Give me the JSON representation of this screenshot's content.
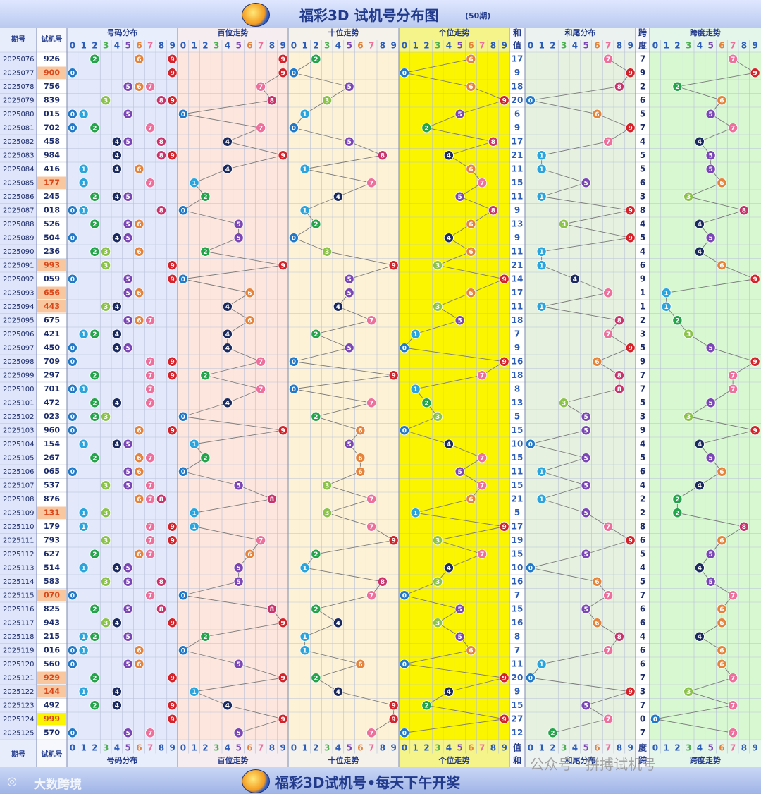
{
  "title": "福彩3D  试机号分布图",
  "subtitle": "(50期)",
  "footer_title": "福彩3D试机号•每天下午开奖",
  "footer_brand": "大数跨境",
  "watermark": "公众号 · 拼搏试机号",
  "headers": {
    "period": "期号",
    "trial": "试机号",
    "dist": "号码分布",
    "bai": "百位走势",
    "shi": "十位走势",
    "ge": "个位走势",
    "he1": "和",
    "he2": "值",
    "hw": "和尾分布",
    "kd1": "跨",
    "kd2": "度",
    "kdt": "跨度走势"
  },
  "chart_data": {
    "type": "table",
    "periods": [
      "2025076",
      "2025077",
      "2025078",
      "2025079",
      "2025080",
      "2025081",
      "2025082",
      "2025083",
      "2025084",
      "2025085",
      "2025086",
      "2025087",
      "2025088",
      "2025089",
      "2025090",
      "2025091",
      "2025092",
      "2025093",
      "2025094",
      "2025095",
      "2025096",
      "2025097",
      "2025098",
      "2025099",
      "2025100",
      "2025101",
      "2025102",
      "2025103",
      "2025104",
      "2025105",
      "2025106",
      "2025107",
      "2025108",
      "2025109",
      "2025110",
      "2025111",
      "2025112",
      "2025113",
      "2025114",
      "2025115",
      "2025116",
      "2025117",
      "2025118",
      "2025119",
      "2025120",
      "2025121",
      "2025122",
      "2025123",
      "2025124",
      "2025125"
    ],
    "numbers": [
      "926",
      "900",
      "756",
      "839",
      "015",
      "702",
      "458",
      "984",
      "416",
      "177",
      "245",
      "018",
      "526",
      "504",
      "236",
      "993",
      "059",
      "656",
      "443",
      "675",
      "421",
      "450",
      "709",
      "297",
      "701",
      "472",
      "023",
      "960",
      "154",
      "267",
      "065",
      "537",
      "876",
      "131",
      "179",
      "793",
      "627",
      "514",
      "583",
      "070",
      "825",
      "943",
      "215",
      "016",
      "560",
      "929",
      "144",
      "492",
      "999",
      "570"
    ],
    "sums": [
      17,
      9,
      18,
      20,
      6,
      9,
      17,
      21,
      11,
      15,
      11,
      9,
      13,
      9,
      11,
      21,
      14,
      17,
      11,
      18,
      7,
      9,
      16,
      18,
      8,
      13,
      5,
      15,
      10,
      15,
      11,
      15,
      21,
      5,
      17,
      19,
      15,
      10,
      16,
      7,
      15,
      16,
      8,
      7,
      11,
      20,
      9,
      15,
      27,
      12
    ],
    "spans": [
      7,
      9,
      2,
      6,
      5,
      7,
      4,
      5,
      5,
      6,
      3,
      8,
      4,
      5,
      4,
      6,
      9,
      1,
      1,
      2,
      3,
      5,
      9,
      7,
      7,
      5,
      3,
      9,
      4,
      5,
      6,
      4,
      2,
      2,
      8,
      6,
      5,
      4,
      5,
      7,
      6,
      6,
      4,
      6,
      6,
      7,
      3,
      7,
      0,
      7
    ],
    "digit_labels": [
      "0",
      "1",
      "2",
      "3",
      "4",
      "5",
      "6",
      "7",
      "8",
      "9"
    ],
    "sum_labels": [
      "17",
      "9",
      "18",
      "20",
      "6",
      "9",
      "17",
      "21",
      "11",
      "15",
      "11",
      "9",
      "13",
      "9",
      "11",
      "21",
      "14",
      "17",
      "11",
      "18",
      "7",
      "9",
      "16",
      "18",
      "8",
      "13",
      "5",
      "15",
      "10",
      "15",
      "11",
      "15",
      "21",
      "5",
      "17",
      "19",
      "15",
      "10",
      "16",
      "7",
      "15",
      "16",
      "8",
      "7",
      "11",
      "20",
      "9",
      "15",
      "27",
      "12"
    ],
    "span_labels": [
      "7",
      "9",
      "2",
      "6",
      "5",
      "7",
      "4",
      "5",
      "5",
      "6",
      "3",
      "8",
      "4",
      "5",
      "4",
      "6",
      "9",
      "1",
      "1",
      "2",
      "3",
      "5",
      "9",
      "7",
      "7",
      "5",
      "3",
      "9",
      "4",
      "5",
      "6",
      "4",
      "2",
      "2",
      "8",
      "6",
      "5",
      "4",
      "5",
      "7",
      "6",
      "6",
      "4",
      "6",
      "6",
      "7",
      "3",
      "7",
      "0",
      "7"
    ]
  },
  "colors": {
    "title": "#223a8c",
    "period_bg": "#dfe6fb",
    "dist_bg": "#e3e8fb",
    "bai_bg": "#fde6dd",
    "shi_bg": "#fdf2d6",
    "ge_bg": "#fbf600",
    "hw_bg": "#e6f2df",
    "kd_bg": "#d8f8d2",
    "header_bg": "#dfe6fb",
    "highlight_pair": "#f9c79f",
    "highlight_triple": "#fbf600",
    "ball": [
      "#1f78c8",
      "#29a4dc",
      "#23a34a",
      "#8bc34a",
      "#1a2a5e",
      "#7a45b5",
      "#e5833a",
      "#ec6f9c",
      "#c8336b",
      "#d3222a"
    ]
  }
}
